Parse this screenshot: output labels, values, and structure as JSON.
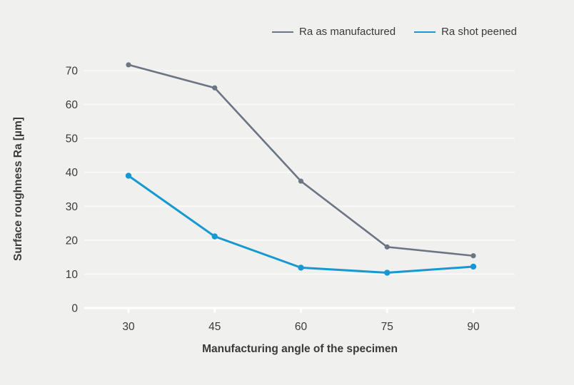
{
  "chart_data": {
    "type": "line",
    "x": [
      30,
      45,
      60,
      75,
      90
    ],
    "series": [
      {
        "name": "Ra as manufactured",
        "color": "#6b7584",
        "marker": "circle",
        "values": [
          71.7,
          64.9,
          37.4,
          18.0,
          15.4
        ]
      },
      {
        "name": "Ra shot peened",
        "color": "#1699d2",
        "marker": "circle",
        "values": [
          39.0,
          21.1,
          11.9,
          10.4,
          12.2
        ]
      }
    ],
    "title": "",
    "xlabel": "Manufacturing angle of the specimen",
    "ylabel": "Surface roughness Ra [µm]",
    "x_ticks": [
      30,
      45,
      60,
      75,
      90
    ],
    "y_ticks": [
      0,
      10,
      20,
      30,
      40,
      50,
      60,
      70
    ],
    "ylim": [
      0,
      75
    ],
    "xlim": [
      22,
      97
    ],
    "grid": "horizontal",
    "gridline_color": "#fbfbfa",
    "legend_position": "top-right",
    "background_color": "#f0f0ee",
    "text_color": "#3a3a39"
  }
}
